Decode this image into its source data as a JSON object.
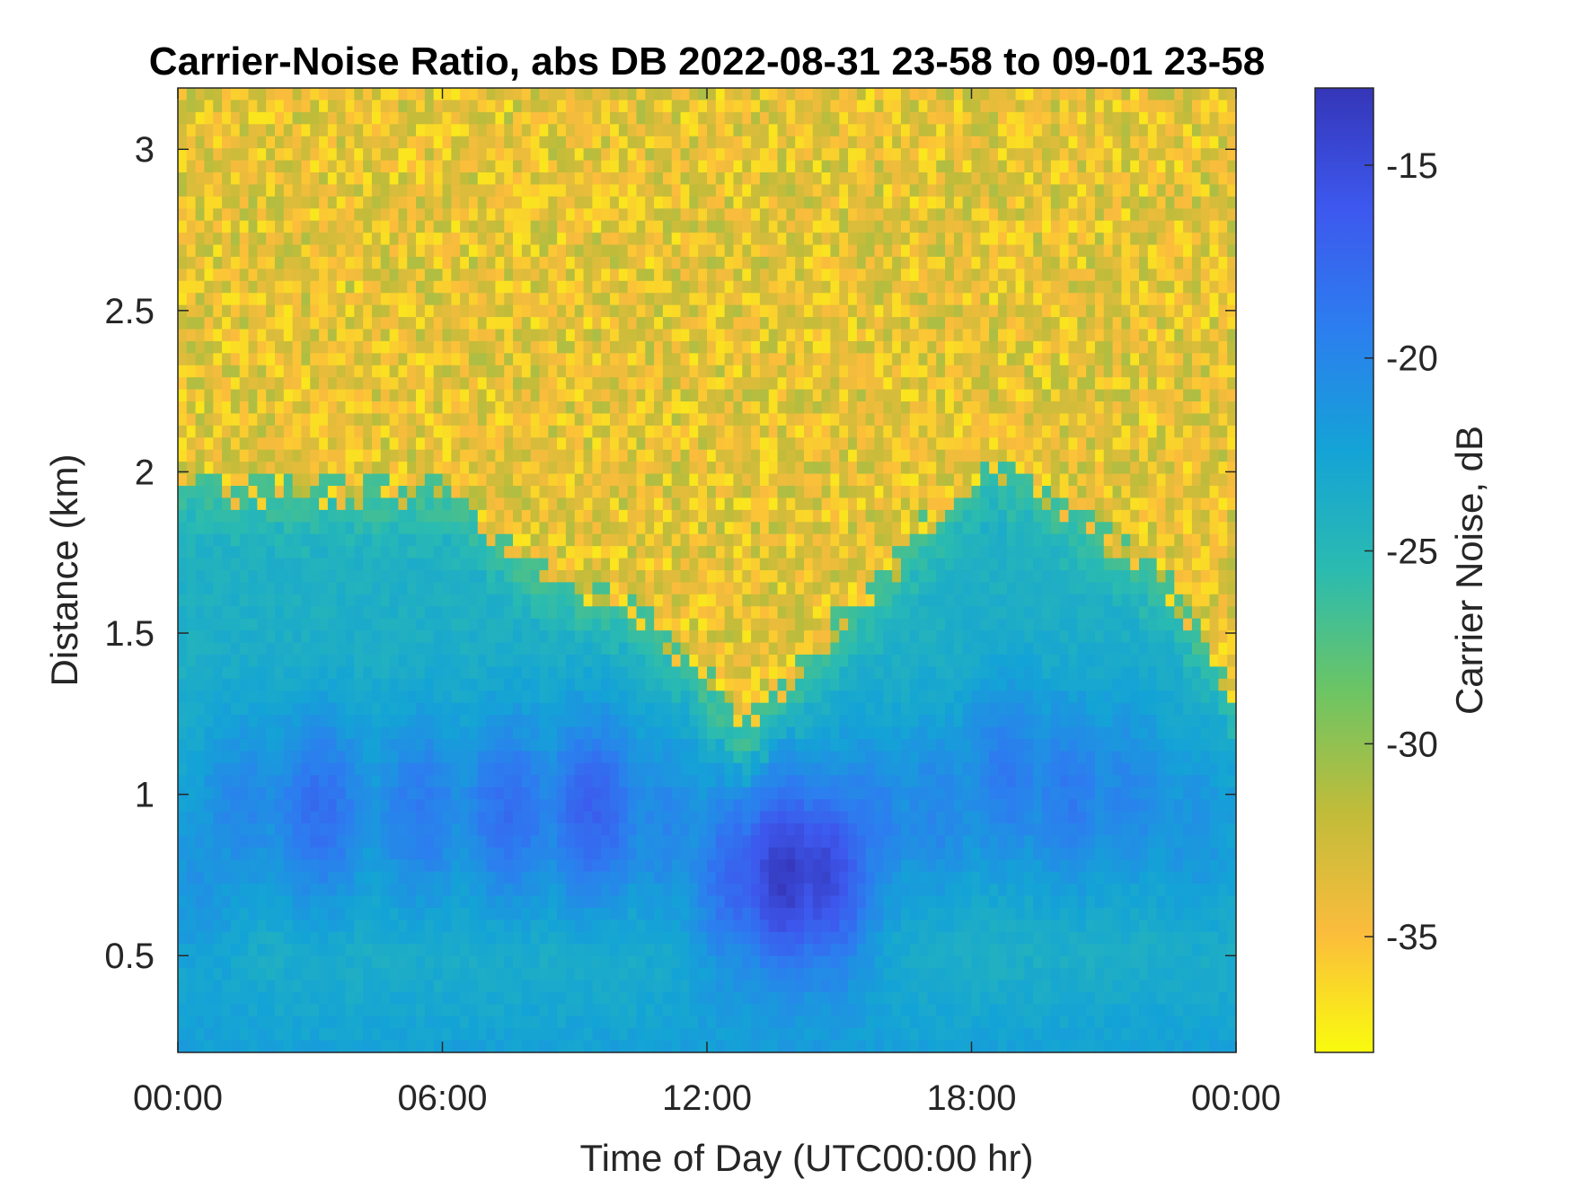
{
  "chart_data": {
    "type": "heatmap",
    "title": "Carrier-Noise Ratio, abs DB 2022-08-31 23-58 to 09-01 23-58",
    "xlabel": "Time of Day (UTC00:00 hr)",
    "ylabel": "Distance (km)",
    "colorbar_label": "Carrier Noise, dB",
    "x_unit": "hour",
    "xlim": [
      0,
      24
    ],
    "ylim": [
      0.2,
      3.19
    ],
    "clim": [
      -38,
      -13
    ],
    "x_ticks": [
      0,
      6,
      12,
      18,
      24
    ],
    "x_tick_labels": [
      "00:00",
      "06:00",
      "12:00",
      "18:00",
      "00:00"
    ],
    "y_ticks": [
      0.5,
      1,
      1.5,
      2,
      2.5,
      3
    ],
    "y_tick_labels": [
      "0.5",
      "1",
      "1.5",
      "2",
      "2.5",
      "3"
    ],
    "colorbar_ticks": [
      -15,
      -20,
      -25,
      -30,
      -35
    ],
    "colorbar_tick_labels": [
      "-15",
      "-20",
      "-25",
      "-30",
      "-35"
    ],
    "colormap": "parula",
    "colormap_colors": [
      "#f9fb0e",
      "#fbbc3c",
      "#c0bc3a",
      "#6cc564",
      "#2bbbb0",
      "#14a3d6",
      "#2c7eef",
      "#3d58ee",
      "#3536b8"
    ],
    "noise_floor_db": -35,
    "strong_cells": [
      {
        "x": 0.5,
        "y": 0.75,
        "db": -21
      },
      {
        "x": 1.5,
        "y": 0.95,
        "db": -20
      },
      {
        "x": 3.2,
        "y": 0.95,
        "db": -18
      },
      {
        "x": 5.5,
        "y": 0.95,
        "db": -19
      },
      {
        "x": 7.5,
        "y": 0.95,
        "db": -18
      },
      {
        "x": 9.4,
        "y": 0.95,
        "db": -17
      },
      {
        "x": 11.0,
        "y": 0.9,
        "db": -20
      },
      {
        "x": 12.8,
        "y": 0.75,
        "db": -17
      },
      {
        "x": 13.8,
        "y": 0.75,
        "db": -13.5
      },
      {
        "x": 14.6,
        "y": 0.75,
        "db": -14.5
      },
      {
        "x": 15.6,
        "y": 0.9,
        "db": -19
      },
      {
        "x": 17.2,
        "y": 0.95,
        "db": -20
      },
      {
        "x": 18.8,
        "y": 1.05,
        "db": -19
      },
      {
        "x": 20.2,
        "y": 1.0,
        "db": -19
      },
      {
        "x": 21.5,
        "y": 1.0,
        "db": -20
      },
      {
        "x": 23.0,
        "y": 0.9,
        "db": -21
      }
    ],
    "boundary_height_km": [
      {
        "x": 0,
        "y": 2.0
      },
      {
        "x": 1,
        "y": 1.95
      },
      {
        "x": 2,
        "y": 1.95
      },
      {
        "x": 3,
        "y": 1.95
      },
      {
        "x": 4,
        "y": 1.95
      },
      {
        "x": 5,
        "y": 1.95
      },
      {
        "x": 6,
        "y": 1.95
      },
      {
        "x": 7,
        "y": 1.85
      },
      {
        "x": 8,
        "y": 1.7
      },
      {
        "x": 9,
        "y": 1.65
      },
      {
        "x": 10,
        "y": 1.6
      },
      {
        "x": 11,
        "y": 1.5
      },
      {
        "x": 12,
        "y": 1.35
      },
      {
        "x": 12.8,
        "y": 1.2
      },
      {
        "x": 13.5,
        "y": 1.3
      },
      {
        "x": 14.5,
        "y": 1.45
      },
      {
        "x": 15.5,
        "y": 1.6
      },
      {
        "x": 16.5,
        "y": 1.75
      },
      {
        "x": 17.5,
        "y": 1.9
      },
      {
        "x": 18.5,
        "y": 2.05
      },
      {
        "x": 19.5,
        "y": 1.95
      },
      {
        "x": 20.5,
        "y": 1.85
      },
      {
        "x": 21.5,
        "y": 1.75
      },
      {
        "x": 22.5,
        "y": 1.65
      },
      {
        "x": 23.3,
        "y": 1.45
      },
      {
        "x": 24,
        "y": 1.3
      }
    ]
  }
}
